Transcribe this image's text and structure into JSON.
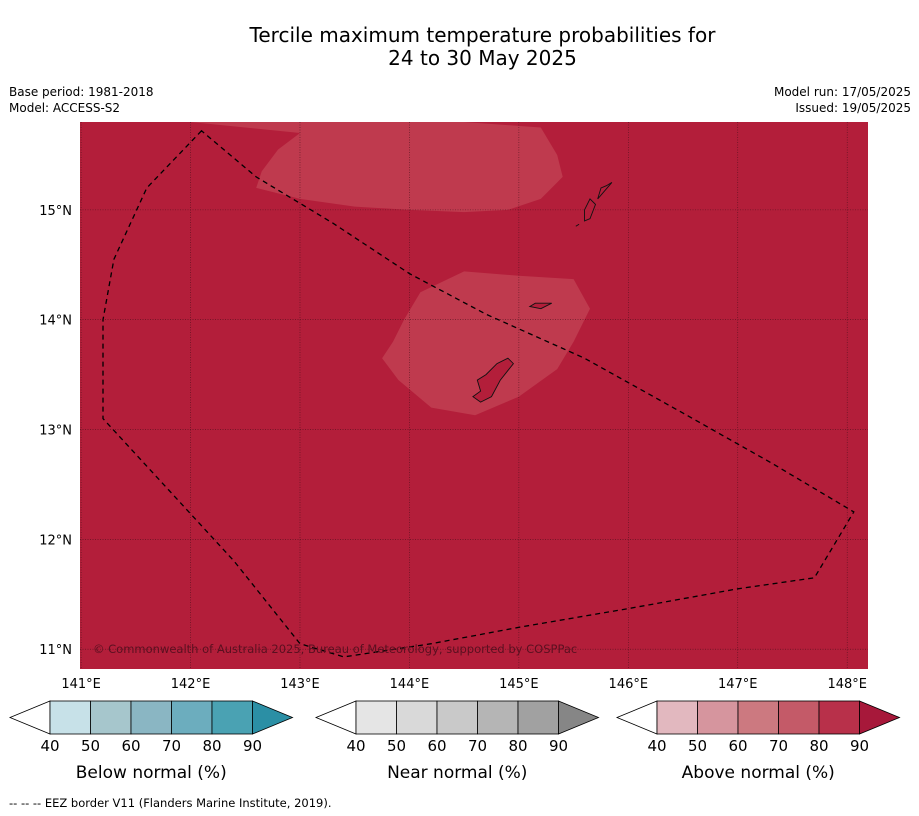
{
  "title": {
    "line1": "Tercile maximum temperature probabilities for",
    "line2": "24 to 30 May 2025"
  },
  "meta": {
    "base_period": "Base period: 1981-2018",
    "model": "Model: ACCESS-S2",
    "model_run": "Model run: 17/05/2025",
    "issued": "Issued: 19/05/2025"
  },
  "map": {
    "lon_range": [
      140.99,
      148.19
    ],
    "lat_range": [
      10.82,
      15.8
    ],
    "lon_ticks": [
      "141°E",
      "142°E",
      "143°E",
      "144°E",
      "145°E",
      "146°E",
      "147°E",
      "148°E"
    ],
    "lon_values": [
      141,
      142,
      143,
      144,
      145,
      146,
      147,
      148
    ],
    "lat_ticks": [
      "11°N",
      "12°N",
      "13°N",
      "14°N",
      "15°N"
    ],
    "lat_values": [
      11,
      12,
      13,
      14,
      15
    ],
    "background_category": "Above normal 80-90%",
    "background_color": "#b31e3a",
    "inner_region_category": "Above normal 70-80%",
    "inner_region_color": "#bf3a4e",
    "copyright": "© Commonwealth of Australia 2025, Bureau of Meteorology, supported by COSPPac",
    "eez_border": [
      [
        142.1,
        15.72
      ],
      [
        141.6,
        15.2
      ],
      [
        141.3,
        14.55
      ],
      [
        141.2,
        14.0
      ],
      [
        141.2,
        13.1
      ],
      [
        141.8,
        12.45
      ],
      [
        142.4,
        11.8
      ],
      [
        143.0,
        11.05
      ],
      [
        143.4,
        10.93
      ],
      [
        144.2,
        11.05
      ],
      [
        145.0,
        11.2
      ],
      [
        146.0,
        11.37
      ],
      [
        147.0,
        11.55
      ],
      [
        147.7,
        11.65
      ],
      [
        148.06,
        12.25
      ],
      [
        147.3,
        12.7
      ],
      [
        146.5,
        13.15
      ],
      [
        145.6,
        13.65
      ],
      [
        144.7,
        14.05
      ],
      [
        144.0,
        14.42
      ],
      [
        143.3,
        14.88
      ],
      [
        142.6,
        15.3
      ]
    ],
    "above_70_80_regions": [
      [
        [
          142.0,
          15.8
        ],
        [
          142.5,
          15.8
        ],
        [
          143.5,
          15.8
        ],
        [
          144.5,
          15.8
        ],
        [
          145.2,
          15.75
        ],
        [
          145.35,
          15.5
        ],
        [
          145.4,
          15.3
        ],
        [
          145.2,
          15.1
        ],
        [
          144.9,
          15.0
        ],
        [
          144.5,
          14.98
        ],
        [
          144.0,
          15.0
        ],
        [
          143.5,
          15.03
        ],
        [
          143.0,
          15.1
        ],
        [
          142.6,
          15.2
        ],
        [
          142.65,
          15.35
        ],
        [
          142.8,
          15.55
        ],
        [
          143.0,
          15.7
        ]
      ],
      [
        [
          143.95,
          14.0
        ],
        [
          144.1,
          14.25
        ],
        [
          144.5,
          14.44
        ],
        [
          145.0,
          14.4
        ],
        [
          145.5,
          14.37
        ],
        [
          145.65,
          14.1
        ],
        [
          145.5,
          13.8
        ],
        [
          145.35,
          13.55
        ],
        [
          145.0,
          13.3
        ],
        [
          144.6,
          13.13
        ],
        [
          144.2,
          13.2
        ],
        [
          143.9,
          13.45
        ],
        [
          143.75,
          13.65
        ],
        [
          143.85,
          13.8
        ]
      ]
    ],
    "islands": [
      [
        [
          144.65,
          13.25
        ],
        [
          144.75,
          13.3
        ],
        [
          144.83,
          13.45
        ],
        [
          144.95,
          13.6
        ],
        [
          144.9,
          13.65
        ],
        [
          144.8,
          13.6
        ],
        [
          144.7,
          13.5
        ],
        [
          144.62,
          13.45
        ],
        [
          144.65,
          13.35
        ],
        [
          144.58,
          13.3
        ]
      ],
      [
        [
          145.2,
          14.1
        ],
        [
          145.3,
          14.15
        ],
        [
          145.15,
          14.15
        ],
        [
          145.1,
          14.12
        ]
      ],
      [
        [
          145.6,
          15.0
        ],
        [
          145.65,
          15.1
        ],
        [
          145.7,
          15.05
        ],
        [
          145.65,
          14.92
        ],
        [
          145.6,
          14.9
        ]
      ],
      [
        [
          145.72,
          15.1
        ],
        [
          145.85,
          15.25
        ],
        [
          145.8,
          15.22
        ],
        [
          145.75,
          15.2
        ]
      ],
      [
        [
          145.52,
          14.85
        ],
        [
          145.55,
          14.87
        ]
      ]
    ]
  },
  "legend": {
    "groups": [
      {
        "id": "below",
        "label": "Below normal (%)",
        "ticks": [
          "40",
          "50",
          "60",
          "70",
          "80",
          "90"
        ],
        "colors": [
          "#ffffff",
          "#c7e1e8",
          "#a6c6cc",
          "#8ab6c3",
          "#6cadbe",
          "#4aa2b3",
          "#2b8fa5"
        ]
      },
      {
        "id": "near",
        "label": "Near normal (%)",
        "ticks": [
          "40",
          "50",
          "60",
          "70",
          "80",
          "90"
        ],
        "colors": [
          "#ffffff",
          "#e5e5e5",
          "#d9d9d9",
          "#c9c9c9",
          "#b5b5b5",
          "#a1a1a1",
          "#868686"
        ]
      },
      {
        "id": "above",
        "label": "Above normal (%)",
        "ticks": [
          "40",
          "50",
          "60",
          "70",
          "80",
          "90"
        ],
        "colors": [
          "#ffffff",
          "#e2b8bf",
          "#d6959e",
          "#cc7980",
          "#c45a68",
          "#b8304a",
          "#a7183a"
        ]
      }
    ]
  },
  "footer": "--  --  -- EEZ border V11 (Flanders Marine Institute, 2019)."
}
